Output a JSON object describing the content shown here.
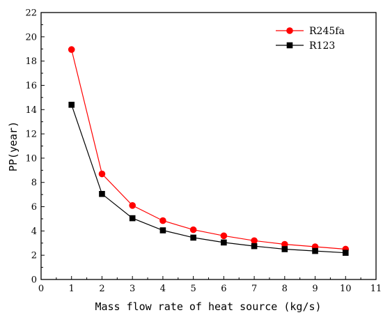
{
  "chart_data": {
    "type": "line",
    "xlabel": "Mass flow rate of heat source (kg/s)",
    "ylabel": "PP(year)",
    "xlim": [
      0,
      11
    ],
    "ylim": [
      0,
      22
    ],
    "xticks": [
      "0",
      "1",
      "2",
      "3",
      "4",
      "5",
      "6",
      "7",
      "8",
      "9",
      "10",
      "11"
    ],
    "yticks": [
      "0",
      "2",
      "4",
      "6",
      "8",
      "10",
      "12",
      "14",
      "16",
      "18",
      "20",
      "22"
    ],
    "grid": false,
    "legend_position": "top-right",
    "x": [
      1,
      2,
      3,
      4,
      5,
      6,
      7,
      8,
      9,
      10
    ],
    "series": [
      {
        "name": "R245fa",
        "color": "#ff0000",
        "marker": "circle",
        "values": [
          18.95,
          8.7,
          6.1,
          4.85,
          4.1,
          3.6,
          3.2,
          2.9,
          2.7,
          2.5
        ]
      },
      {
        "name": "R123",
        "color": "#000000",
        "marker": "square",
        "values": [
          14.4,
          7.05,
          5.05,
          4.05,
          3.45,
          3.05,
          2.75,
          2.5,
          2.35,
          2.2
        ]
      }
    ]
  }
}
